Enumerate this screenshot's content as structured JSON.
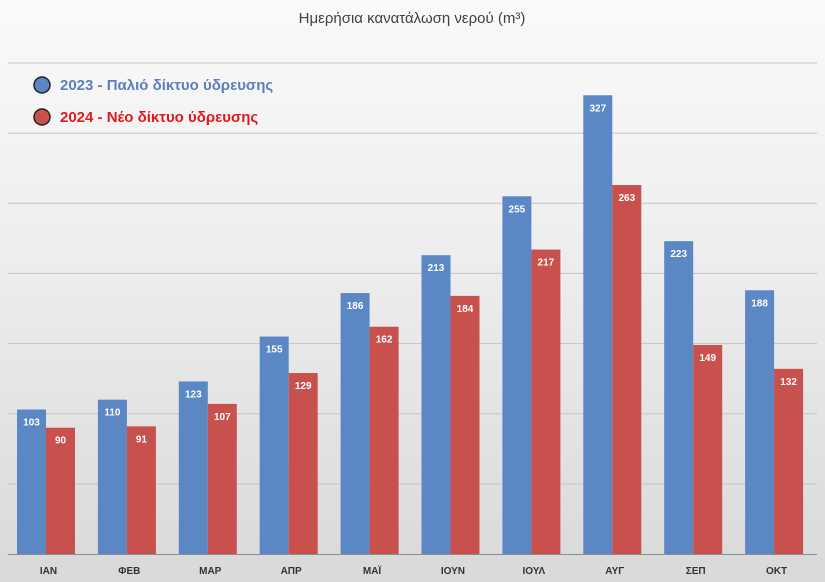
{
  "chart_data": {
    "type": "bar",
    "title": "Ημερήσια κανατάλωση νερού (m³)",
    "categories": [
      "ΙΑΝ",
      "ΦΕΒ",
      "ΜΑΡ",
      "ΑΠΡ",
      "ΜΑΪ",
      "ΙΟΥΝ",
      "ΙΟΥΛ",
      "ΑΥΓ",
      "ΣΕΠ",
      "ΟΚΤ"
    ],
    "series": [
      {
        "name": "2023 - Παλιό δίκτυο ύδρευσης",
        "color": "#5b87c5",
        "legend_color": "#5a7fbe",
        "values": [
          103,
          110,
          123,
          155,
          186,
          213,
          255,
          327,
          223,
          188
        ]
      },
      {
        "name": "2024 - Νέο δίκτυο ύδρευσης",
        "color": "#c8514e",
        "legend_color": "#e0191f",
        "values": [
          90,
          91,
          107,
          129,
          162,
          184,
          217,
          263,
          149,
          132
        ]
      }
    ],
    "ylim": [
      0,
      350
    ],
    "ygrid_step": 50,
    "grid": true,
    "data_labels": true,
    "legend_position": "top-left"
  }
}
